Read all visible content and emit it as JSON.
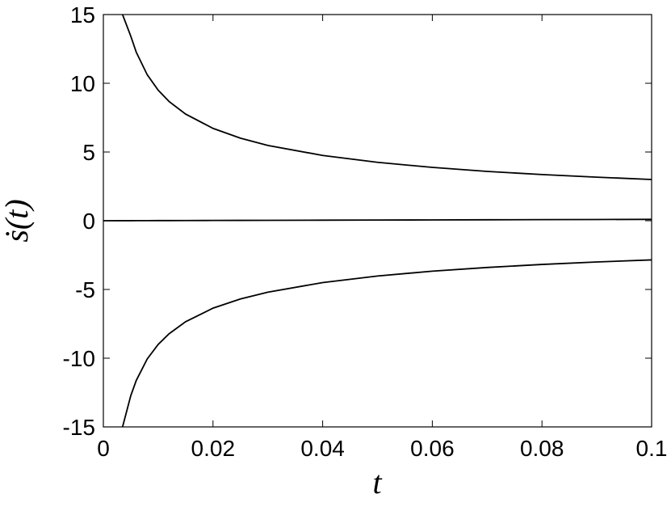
{
  "chart_data": {
    "type": "line",
    "x_label": "t",
    "y_label": "ṡ(t)",
    "x": [
      0,
      0.0035,
      0.005,
      0.006,
      0.008,
      0.01,
      0.012,
      0.015,
      0.02,
      0.025,
      0.03,
      0.04,
      0.05,
      0.06,
      0.07,
      0.08,
      0.09,
      0.1
    ],
    "series": [
      {
        "color": "#000000",
        "values": [
          null,
          15,
          13.43,
          12.26,
          10.62,
          9.5,
          8.67,
          7.76,
          6.72,
          6.01,
          5.48,
          4.75,
          4.25,
          3.88,
          3.59,
          3.36,
          3.17,
          3.0
        ]
      },
      {
        "color": "#000000",
        "values": [
          0,
          0.0035,
          0.005,
          0.006,
          0.008,
          0.01,
          0.012,
          0.015,
          0.02,
          0.025,
          0.03,
          0.04,
          0.05,
          0.06,
          0.07,
          0.08,
          0.09,
          0.1
        ]
      },
      {
        "color": "#000000",
        "values": [
          null,
          -15,
          -12.73,
          -11.62,
          -10.06,
          -9.0,
          -8.22,
          -7.35,
          -6.36,
          -5.69,
          -5.2,
          -4.5,
          -4.02,
          -3.67,
          -3.4,
          -3.18,
          -3.0,
          -2.85
        ]
      }
    ],
    "xlim": [
      0,
      0.1
    ],
    "xticks": [
      0,
      0.02,
      0.04,
      0.06,
      0.08,
      0.1
    ],
    "ylim": [
      -15,
      15
    ],
    "yticks": [
      -15,
      -10,
      -5,
      0,
      5,
      10,
      15
    ],
    "grid": false
  }
}
